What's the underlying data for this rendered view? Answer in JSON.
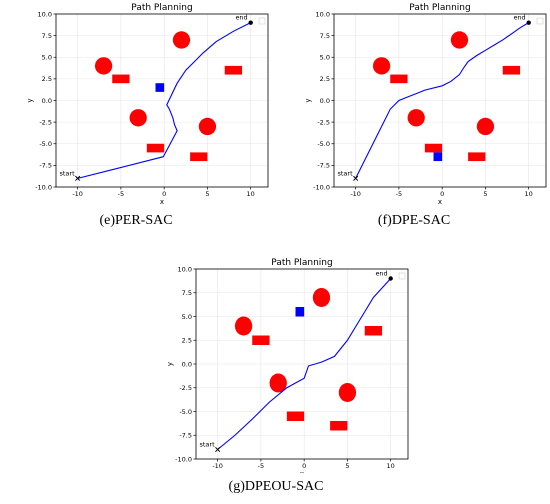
{
  "chart_data": [
    {
      "id": "e",
      "type": "scatter",
      "title": "Path Planning",
      "caption": "(e)PER-SAC",
      "xlabel": "x",
      "ylabel": "y",
      "xlim": [
        -12.5,
        12
      ],
      "ylim": [
        -10,
        10
      ],
      "xticks": [
        -10,
        -5,
        0,
        5,
        10
      ],
      "yticks": [
        -10.0,
        -7.5,
        -5.0,
        -2.5,
        0.0,
        2.5,
        5.0,
        7.5,
        10.0
      ],
      "grid": true,
      "legend": "top-right",
      "start": {
        "x": -10,
        "y": -9,
        "label": "start"
      },
      "end": {
        "x": 10,
        "y": 9,
        "label": "end"
      },
      "circles": [
        {
          "x": -7,
          "y": 4,
          "r": 1
        },
        {
          "x": 2,
          "y": 7,
          "r": 1
        },
        {
          "x": -3,
          "y": -2,
          "r": 1
        },
        {
          "x": 5,
          "y": -3,
          "r": 1
        }
      ],
      "rectangles": [
        {
          "x": -5,
          "y": 2.5,
          "w": 2,
          "h": 1
        },
        {
          "x": 8,
          "y": 3.5,
          "w": 2,
          "h": 1
        },
        {
          "x": -1,
          "y": -5.5,
          "w": 2,
          "h": 1
        },
        {
          "x": 4,
          "y": -6.5,
          "w": 2,
          "h": 1
        }
      ],
      "dynamic_obstacle": {
        "x": -0.5,
        "y": 1.5,
        "w": 1,
        "h": 1
      },
      "path": {
        "x": [
          -10,
          -6,
          -0.1,
          1.5,
          1.2,
          1.0,
          0.8,
          0.6,
          0.3,
          1.5,
          2.5,
          3.5,
          4.5,
          6,
          8,
          10
        ],
        "y": [
          -9,
          -8,
          -6.5,
          -3.5,
          -2.8,
          -2.0,
          -1.5,
          -1.0,
          -0.5,
          2.0,
          3.5,
          4.5,
          5.5,
          6.8,
          8,
          9
        ]
      }
    },
    {
      "id": "f",
      "type": "scatter",
      "title": "Path Planning",
      "caption": "(f)DPE-SAC",
      "xlabel": "x",
      "ylabel": "y",
      "xlim": [
        -12.5,
        12
      ],
      "ylim": [
        -10,
        10
      ],
      "xticks": [
        -10,
        -5,
        0,
        5,
        10
      ],
      "yticks": [
        -10.0,
        -7.5,
        -5.0,
        -2.5,
        0.0,
        2.5,
        5.0,
        7.5,
        10.0
      ],
      "grid": true,
      "legend": "top-right",
      "start": {
        "x": -10,
        "y": -9,
        "label": "start"
      },
      "end": {
        "x": 10,
        "y": 9,
        "label": "end"
      },
      "circles": [
        {
          "x": -7,
          "y": 4,
          "r": 1
        },
        {
          "x": 2,
          "y": 7,
          "r": 1
        },
        {
          "x": -3,
          "y": -2,
          "r": 1
        },
        {
          "x": 5,
          "y": -3,
          "r": 1
        }
      ],
      "rectangles": [
        {
          "x": -5,
          "y": 2.5,
          "w": 2,
          "h": 1
        },
        {
          "x": 8,
          "y": 3.5,
          "w": 2,
          "h": 1
        },
        {
          "x": -1,
          "y": -5.5,
          "w": 2,
          "h": 1
        },
        {
          "x": 4,
          "y": -6.5,
          "w": 2,
          "h": 1
        }
      ],
      "dynamic_obstacle": {
        "x": -0.5,
        "y": -6.5,
        "w": 1,
        "h": 1
      },
      "path": {
        "x": [
          -10,
          -9,
          -8,
          -7,
          -6,
          -5,
          -4,
          -3,
          -2,
          0,
          1,
          2,
          2.5,
          3,
          4,
          5,
          6,
          7,
          8,
          9,
          10
        ],
        "y": [
          -9,
          -7,
          -5,
          -3,
          -1,
          0,
          0.4,
          0.8,
          1.2,
          1.7,
          2.2,
          3,
          3.8,
          4.5,
          5.2,
          5.8,
          6.4,
          7.0,
          7.7,
          8.4,
          9
        ]
      }
    },
    {
      "id": "g",
      "type": "scatter",
      "title": "Path Planning",
      "caption": "(g)DPEOU-SAC",
      "xlabel": "x",
      "ylabel": "y",
      "xlim": [
        -12.5,
        12
      ],
      "ylim": [
        -10,
        10
      ],
      "xticks": [
        -10,
        -5,
        0,
        5,
        10
      ],
      "yticks": [
        -10.0,
        -7.5,
        -5.0,
        -2.5,
        0.0,
        2.5,
        5.0,
        7.5,
        10.0
      ],
      "grid": true,
      "legend": "top-right",
      "start": {
        "x": -10,
        "y": -9,
        "label": "start"
      },
      "end": {
        "x": 10,
        "y": 9,
        "label": "end"
      },
      "circles": [
        {
          "x": -7,
          "y": 4,
          "r": 1
        },
        {
          "x": 2,
          "y": 7,
          "r": 1
        },
        {
          "x": -3,
          "y": -2,
          "r": 1
        },
        {
          "x": 5,
          "y": -3,
          "r": 1
        }
      ],
      "rectangles": [
        {
          "x": -5,
          "y": 2.5,
          "w": 2,
          "h": 1
        },
        {
          "x": 8,
          "y": 3.5,
          "w": 2,
          "h": 1
        },
        {
          "x": -1,
          "y": -5.5,
          "w": 2,
          "h": 1
        },
        {
          "x": 4,
          "y": -6.5,
          "w": 2,
          "h": 1
        }
      ],
      "dynamic_obstacle": {
        "x": -0.5,
        "y": 5.5,
        "w": 1,
        "h": 1
      },
      "path": {
        "x": [
          -10,
          -8,
          -6,
          -4,
          -2,
          0,
          0.5,
          2,
          3.5,
          5,
          6,
          7,
          8,
          9,
          10
        ],
        "y": [
          -9,
          -7.5,
          -5.8,
          -4,
          -2.5,
          -1.5,
          -0.2,
          0.2,
          0.8,
          2.5,
          4,
          5.5,
          7,
          8,
          9
        ]
      }
    }
  ]
}
